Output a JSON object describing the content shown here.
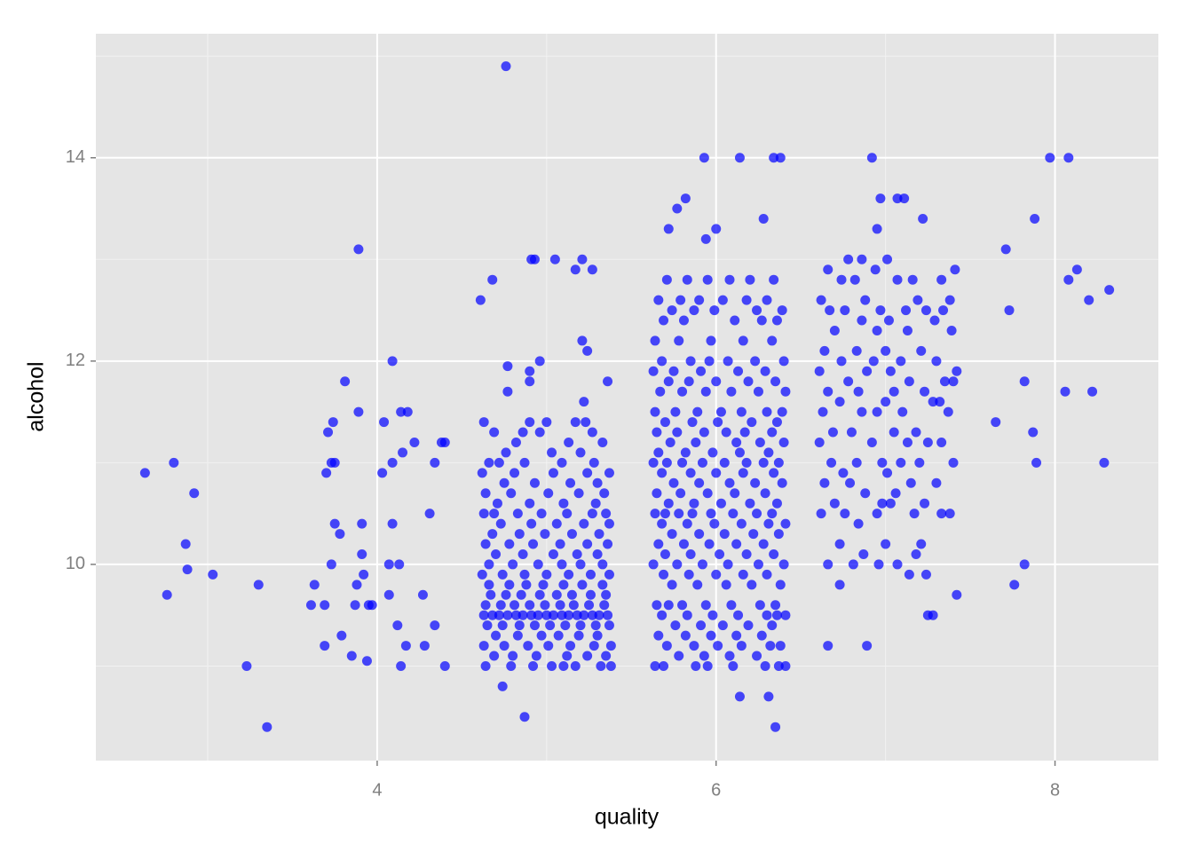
{
  "chart_data": {
    "type": "scatter",
    "x_label": "quality",
    "y_label": "alcohol",
    "color": "#0000ff",
    "alpha": 0.7,
    "grid": true,
    "xlim": [
      2.34,
      8.61
    ],
    "ylim": [
      8.07,
      15.22
    ],
    "xticks": [
      4,
      6,
      8
    ],
    "yticks": [
      10,
      12,
      14
    ],
    "minor_xticks": [
      3,
      5,
      7
    ],
    "minor_yticks": [
      9,
      11,
      13,
      15
    ],
    "x": [
      2.63,
      2.8,
      2.92,
      2.87,
      2.88,
      2.76,
      3.03,
      3.23,
      3.35,
      3.3,
      3.89,
      3.81,
      3.89,
      3.75,
      3.71,
      3.74,
      3.7,
      3.73,
      3.75,
      3.78,
      3.91,
      3.91,
      3.73,
      3.63,
      3.61,
      3.69,
      3.69,
      3.79,
      3.85,
      3.94,
      3.88,
      3.87,
      3.95,
      3.92,
      3.97,
      4.09,
      4.14,
      4.04,
      4.18,
      4.09,
      4.15,
      4.22,
      4.03,
      4.09,
      4.07,
      4.13,
      4.07,
      4.12,
      4.14,
      4.17,
      4.27,
      4.31,
      4.34,
      4.38,
      4.4,
      4.34,
      4.4,
      4.28,
      4.76,
      4.61,
      4.68,
      4.91,
      4.93,
      5.05,
      5.21,
      5.17,
      5.27,
      5.21,
      5.24,
      4.96,
      4.77,
      4.9,
      4.77,
      4.9,
      5.36,
      5.22,
      4.74,
      4.87,
      5.72,
      5.77,
      5.82,
      5.93,
      6.14,
      6.34,
      6.38,
      6.0,
      5.94,
      6.28,
      6.14,
      6.35,
      6.31,
      6.92,
      6.97,
      7.07,
      7.11,
      6.95,
      7.22,
      6.66,
      6.89,
      7.97,
      8.08,
      7.88,
      7.71,
      8.13,
      8.08,
      8.32,
      8.2,
      7.73,
      7.82,
      8.06,
      8.22,
      7.65,
      7.87,
      7.89,
      8.29,
      7.82,
      7.76,
      4.63,
      4.68,
      4.72,
      4.77,
      4.82,
      4.86,
      4.91,
      4.95,
      5.0,
      5.04,
      5.09,
      5.13,
      5.18,
      5.22,
      5.27,
      5.31,
      5.36,
      4.65,
      4.74,
      4.84,
      4.93,
      5.02,
      5.11,
      5.2,
      5.29,
      5.37,
      4.64,
      4.73,
      4.81,
      4.9,
      4.99,
      5.08,
      5.16,
      5.25,
      5.34,
      4.67,
      4.76,
      4.85,
      4.96,
      5.06,
      5.15,
      5.26,
      5.35,
      4.66,
      4.78,
      4.88,
      4.98,
      5.1,
      5.21,
      5.33,
      4.7,
      4.83,
      4.97,
      5.07,
      5.19,
      5.3,
      4.63,
      4.75,
      4.89,
      5.01,
      5.14,
      5.28,
      5.38,
      4.69,
      4.8,
      4.94,
      5.12,
      5.24,
      5.35,
      4.64,
      4.79,
      4.92,
      5.03,
      5.1,
      5.17,
      5.32,
      5.38,
      4.62,
      4.74,
      4.87,
      5.0,
      5.13,
      5.26,
      5.37,
      4.66,
      4.8,
      4.95,
      5.09,
      5.2,
      5.33,
      4.7,
      4.86,
      5.04,
      5.18,
      5.3,
      4.64,
      4.78,
      4.92,
      5.08,
      5.24,
      5.36,
      4.68,
      4.84,
      4.99,
      5.15,
      5.31,
      4.73,
      4.91,
      5.06,
      5.22,
      5.37,
      4.63,
      4.69,
      4.83,
      4.97,
      5.12,
      5.27,
      5.35,
      4.71,
      4.9,
      5.1,
      5.29,
      4.64,
      4.79,
      5.01,
      5.19,
      5.34,
      4.75,
      4.93,
      5.14,
      5.3,
      4.62,
      4.81,
      5.04,
      5.24,
      5.37,
      4.66,
      4.72,
      4.87,
      5.09,
      5.28,
      4.76,
      5.03,
      5.2,
      4.82,
      5.13,
      5.33,
      4.69,
      4.86,
      4.96,
      5.27,
      4.63,
      4.9,
      5.0,
      5.17,
      5.23,
      5.71,
      5.83,
      5.95,
      6.08,
      6.2,
      6.34,
      5.66,
      5.79,
      5.9,
      6.04,
      6.18,
      6.3,
      5.74,
      5.87,
      5.99,
      6.24,
      6.39,
      5.69,
      5.81,
      6.11,
      6.27,
      6.36,
      5.64,
      5.78,
      5.97,
      6.16,
      6.33,
      5.68,
      5.85,
      5.96,
      6.07,
      6.23,
      6.4,
      5.63,
      5.75,
      5.91,
      6.13,
      6.29,
      5.72,
      5.84,
      6.0,
      6.19,
      6.35,
      5.67,
      5.8,
      5.94,
      6.09,
      6.25,
      6.41,
      5.64,
      5.76,
      5.89,
      6.03,
      6.15,
      6.3,
      6.39,
      5.7,
      5.86,
      6.01,
      6.21,
      6.36,
      5.65,
      5.77,
      5.93,
      6.06,
      6.17,
      6.33,
      5.73,
      5.88,
      6.12,
      6.26,
      6.4,
      5.66,
      5.82,
      5.98,
      6.14,
      6.31,
      5.63,
      5.71,
      5.8,
      5.92,
      6.05,
      6.18,
      6.28,
      6.37,
      5.68,
      5.85,
      6.0,
      6.16,
      6.34,
      5.75,
      5.9,
      6.08,
      6.23,
      6.39,
      5.65,
      5.79,
      5.95,
      6.11,
      6.29,
      5.72,
      5.87,
      6.03,
      6.2,
      6.36,
      5.64,
      5.7,
      5.78,
      5.86,
      5.97,
      6.1,
      6.24,
      6.33,
      5.68,
      5.83,
      5.99,
      6.15,
      6.31,
      6.41,
      5.74,
      5.9,
      6.05,
      6.22,
      6.37,
      5.66,
      5.81,
      5.96,
      6.12,
      6.28,
      5.7,
      5.85,
      6.02,
      6.18,
      6.34,
      5.63,
      5.77,
      5.92,
      6.07,
      6.25,
      6.4,
      5.69,
      5.84,
      6.0,
      6.16,
      6.3,
      5.74,
      5.89,
      6.06,
      6.21,
      6.38,
      5.65,
      5.72,
      5.8,
      5.94,
      6.09,
      6.26,
      6.35,
      5.68,
      5.83,
      5.98,
      6.13,
      6.3,
      6.36,
      6.41,
      5.76,
      5.91,
      6.04,
      6.19,
      6.33,
      5.66,
      5.82,
      5.97,
      6.12,
      6.27,
      5.71,
      5.87,
      6.01,
      6.15,
      6.32,
      6.38,
      5.78,
      5.93,
      6.08,
      6.24,
      5.64,
      5.69,
      5.88,
      5.95,
      6.1,
      6.29,
      6.37,
      6.41,
      6.78,
      6.86,
      7.01,
      6.66,
      6.94,
      7.41,
      6.74,
      6.82,
      7.07,
      7.16,
      7.33,
      6.62,
      6.88,
      7.19,
      7.38,
      6.67,
      6.76,
      6.97,
      7.12,
      7.24,
      7.34,
      6.86,
      7.02,
      7.29,
      6.7,
      6.95,
      7.13,
      7.39,
      6.64,
      6.83,
      7.0,
      7.21,
      6.74,
      6.93,
      7.09,
      7.3,
      6.61,
      6.89,
      7.03,
      7.42,
      6.78,
      7.14,
      7.35,
      7.4,
      6.66,
      6.84,
      7.05,
      7.23,
      6.73,
      7.0,
      7.28,
      7.32,
      6.63,
      6.86,
      6.95,
      7.1,
      7.37,
      6.69,
      6.8,
      7.05,
      7.18,
      6.61,
      6.92,
      7.13,
      7.25,
      7.33,
      6.68,
      6.83,
      6.98,
      7.09,
      7.2,
      7.4,
      6.75,
      7.01,
      6.64,
      6.79,
      7.15,
      7.3,
      6.88,
      7.06,
      6.7,
      6.98,
      7.03,
      7.23,
      6.62,
      6.76,
      6.95,
      7.17,
      7.33,
      7.38,
      6.84,
      6.73,
      7.0,
      7.21,
      6.87,
      7.18,
      6.66,
      6.81,
      6.96,
      7.07,
      7.14,
      7.24,
      6.73,
      7.42,
      7.25,
      7.28
    ],
    "values": [
      10.9,
      11.0,
      10.7,
      10.2,
      9.95,
      9.7,
      9.9,
      9.0,
      8.4,
      9.8,
      13.1,
      11.8,
      11.5,
      11.0,
      11.3,
      11.4,
      10.9,
      11.0,
      10.4,
      10.3,
      10.4,
      10.1,
      10.0,
      9.8,
      9.6,
      9.6,
      9.2,
      9.3,
      9.1,
      9.05,
      9.8,
      9.6,
      9.6,
      9.9,
      9.6,
      12.0,
      11.5,
      11.4,
      11.5,
      11.0,
      11.1,
      11.2,
      10.9,
      10.4,
      10.0,
      10.0,
      9.7,
      9.4,
      9.0,
      9.2,
      9.7,
      10.5,
      11.0,
      11.2,
      11.2,
      9.4,
      9.0,
      9.2,
      14.9,
      12.6,
      12.8,
      13.0,
      13.0,
      13.0,
      13.0,
      12.9,
      12.9,
      12.2,
      12.1,
      12.0,
      11.95,
      11.9,
      11.7,
      11.8,
      11.8,
      11.6,
      8.8,
      8.5,
      13.3,
      13.5,
      13.6,
      14.0,
      14.0,
      14.0,
      14.0,
      13.3,
      13.2,
      13.4,
      8.7,
      8.4,
      8.7,
      14.0,
      13.6,
      13.6,
      13.6,
      13.3,
      13.4,
      9.2,
      9.2,
      14.0,
      14.0,
      13.4,
      13.1,
      12.9,
      12.8,
      12.7,
      12.6,
      12.5,
      11.8,
      11.7,
      11.7,
      11.4,
      11.3,
      11.0,
      11.0,
      10.0,
      9.8,
      9.5,
      9.5,
      9.5,
      9.5,
      9.5,
      9.5,
      9.5,
      9.5,
      9.5,
      9.5,
      9.5,
      9.5,
      9.5,
      9.5,
      9.5,
      9.5,
      9.5,
      9.4,
      9.4,
      9.4,
      9.4,
      9.4,
      9.4,
      9.4,
      9.4,
      9.4,
      9.6,
      9.6,
      9.6,
      9.6,
      9.6,
      9.6,
      9.6,
      9.6,
      9.6,
      9.7,
      9.7,
      9.7,
      9.7,
      9.7,
      9.7,
      9.7,
      9.7,
      9.8,
      9.8,
      9.8,
      9.8,
      9.8,
      9.8,
      9.8,
      9.3,
      9.3,
      9.3,
      9.3,
      9.3,
      9.3,
      9.2,
      9.2,
      9.2,
      9.2,
      9.2,
      9.2,
      9.2,
      9.1,
      9.1,
      9.1,
      9.1,
      9.1,
      9.1,
      9.0,
      9.0,
      9.0,
      9.0,
      9.0,
      9.0,
      9.0,
      9.0,
      9.9,
      9.9,
      9.9,
      9.9,
      9.9,
      9.9,
      9.9,
      10.0,
      10.0,
      10.0,
      10.0,
      10.0,
      10.0,
      10.1,
      10.1,
      10.1,
      10.1,
      10.1,
      10.2,
      10.2,
      10.2,
      10.2,
      10.2,
      10.2,
      10.3,
      10.3,
      10.3,
      10.3,
      10.3,
      10.4,
      10.4,
      10.4,
      10.4,
      10.4,
      10.5,
      10.5,
      10.5,
      10.5,
      10.5,
      10.5,
      10.5,
      10.6,
      10.6,
      10.6,
      10.6,
      10.7,
      10.7,
      10.7,
      10.7,
      10.7,
      10.8,
      10.8,
      10.8,
      10.8,
      10.9,
      10.9,
      10.9,
      10.9,
      10.9,
      11.0,
      11.0,
      11.0,
      11.0,
      11.0,
      11.1,
      11.1,
      11.1,
      11.2,
      11.2,
      11.2,
      11.3,
      11.3,
      11.3,
      11.3,
      11.4,
      11.4,
      11.4,
      11.4,
      11.4,
      12.8,
      12.8,
      12.8,
      12.8,
      12.8,
      12.8,
      12.6,
      12.6,
      12.6,
      12.6,
      12.6,
      12.6,
      12.5,
      12.5,
      12.5,
      12.5,
      12.5,
      12.4,
      12.4,
      12.4,
      12.4,
      12.4,
      12.2,
      12.2,
      12.2,
      12.2,
      12.2,
      12.0,
      12.0,
      12.0,
      12.0,
      12.0,
      12.0,
      11.9,
      11.9,
      11.9,
      11.9,
      11.9,
      11.8,
      11.8,
      11.8,
      11.8,
      11.8,
      11.7,
      11.7,
      11.7,
      11.7,
      11.7,
      11.7,
      11.5,
      11.5,
      11.5,
      11.5,
      11.5,
      11.5,
      11.5,
      11.4,
      11.4,
      11.4,
      11.4,
      11.4,
      11.3,
      11.3,
      11.3,
      11.3,
      11.3,
      11.3,
      11.2,
      11.2,
      11.2,
      11.2,
      11.2,
      11.1,
      11.1,
      11.1,
      11.1,
      11.1,
      11.0,
      11.0,
      11.0,
      11.0,
      11.0,
      11.0,
      11.0,
      11.0,
      10.9,
      10.9,
      10.9,
      10.9,
      10.9,
      10.8,
      10.8,
      10.8,
      10.8,
      10.8,
      10.7,
      10.7,
      10.7,
      10.7,
      10.7,
      10.6,
      10.6,
      10.6,
      10.6,
      10.6,
      10.5,
      10.5,
      10.5,
      10.5,
      10.5,
      10.5,
      10.5,
      10.5,
      10.4,
      10.4,
      10.4,
      10.4,
      10.4,
      10.4,
      10.3,
      10.3,
      10.3,
      10.3,
      10.3,
      10.2,
      10.2,
      10.2,
      10.2,
      10.2,
      10.1,
      10.1,
      10.1,
      10.1,
      10.1,
      10.0,
      10.0,
      10.0,
      10.0,
      10.0,
      10.0,
      9.9,
      9.9,
      9.9,
      9.9,
      9.9,
      9.8,
      9.8,
      9.8,
      9.8,
      9.8,
      9.6,
      9.6,
      9.6,
      9.6,
      9.6,
      9.6,
      9.6,
      9.5,
      9.5,
      9.5,
      9.5,
      9.5,
      9.5,
      9.5,
      9.4,
      9.4,
      9.4,
      9.4,
      9.4,
      9.3,
      9.3,
      9.3,
      9.3,
      9.3,
      9.2,
      9.2,
      9.2,
      9.2,
      9.2,
      9.2,
      9.1,
      9.1,
      9.1,
      9.1,
      9.0,
      9.0,
      9.0,
      9.0,
      9.0,
      9.0,
      9.0,
      9.0,
      13.0,
      13.0,
      13.0,
      12.9,
      12.9,
      12.9,
      12.8,
      12.8,
      12.8,
      12.8,
      12.8,
      12.6,
      12.6,
      12.6,
      12.6,
      12.5,
      12.5,
      12.5,
      12.5,
      12.5,
      12.5,
      12.4,
      12.4,
      12.4,
      12.3,
      12.3,
      12.3,
      12.3,
      12.1,
      12.1,
      12.1,
      12.1,
      12.0,
      12.0,
      12.0,
      12.0,
      11.9,
      11.9,
      11.9,
      11.9,
      11.8,
      11.8,
      11.8,
      11.8,
      11.7,
      11.7,
      11.7,
      11.7,
      11.6,
      11.6,
      11.6,
      11.6,
      11.5,
      11.5,
      11.5,
      11.5,
      11.5,
      11.3,
      11.3,
      11.3,
      11.3,
      11.2,
      11.2,
      11.2,
      11.2,
      11.2,
      11.0,
      11.0,
      11.0,
      11.0,
      11.0,
      11.0,
      10.9,
      10.9,
      10.8,
      10.8,
      10.8,
      10.8,
      10.7,
      10.7,
      10.6,
      10.6,
      10.6,
      10.6,
      10.5,
      10.5,
      10.5,
      10.5,
      10.5,
      10.5,
      10.4,
      10.2,
      10.2,
      10.2,
      10.1,
      10.1,
      10.0,
      10.0,
      10.0,
      10.0,
      9.9,
      9.9,
      9.8,
      9.7,
      9.5,
      9.5
    ]
  }
}
